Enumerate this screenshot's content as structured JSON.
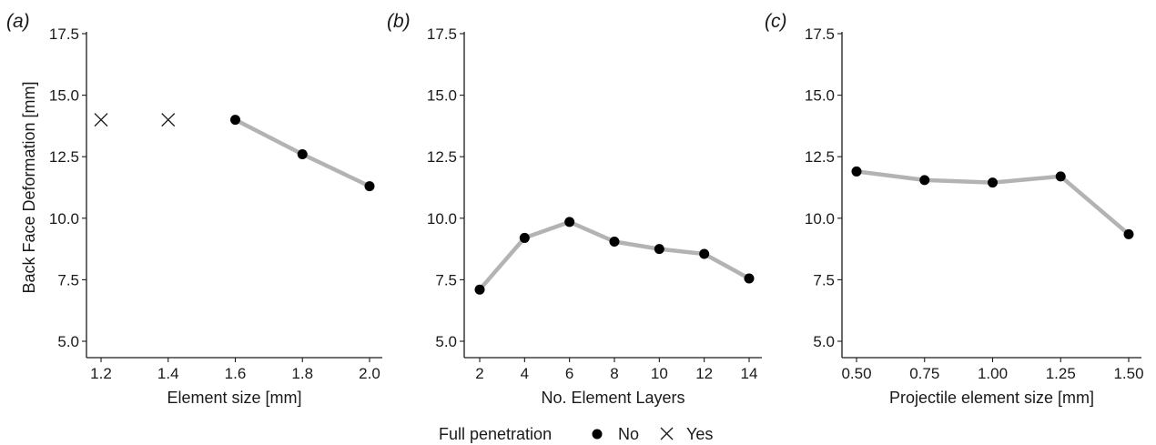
{
  "legend": {
    "title": "Full penetration",
    "entries": [
      {
        "label": "No",
        "marker": "dot"
      },
      {
        "label": "Yes",
        "marker": "cross"
      }
    ]
  },
  "colors": {
    "line": "#b3b3b3",
    "marker": "#000000",
    "axis": "#1a1a1a"
  },
  "chart_data": [
    {
      "type": "line",
      "panel_label": "(a)",
      "xlabel": "Element size [mm]",
      "ylabel": "Back Face Deformation [mm]",
      "xlim": [
        1.2,
        2.0
      ],
      "x_ticks": [
        "1.2",
        "1.4",
        "1.6",
        "1.8",
        "2.0"
      ],
      "ylim": [
        5.0,
        17.5
      ],
      "y_ticks": [
        "5.0",
        "7.5",
        "10.0",
        "12.5",
        "15.0",
        "17.5"
      ],
      "grid": false,
      "points": [
        {
          "x": 1.2,
          "y": 14.0,
          "penetration": "Yes"
        },
        {
          "x": 1.4,
          "y": 14.0,
          "penetration": "Yes"
        },
        {
          "x": 1.6,
          "y": 14.0,
          "penetration": "No"
        },
        {
          "x": 1.8,
          "y": 12.6,
          "penetration": "No"
        },
        {
          "x": 2.0,
          "y": 11.3,
          "penetration": "No"
        }
      ]
    },
    {
      "type": "line",
      "panel_label": "(b)",
      "xlabel": "No. Element Layers",
      "ylabel": "",
      "xlim": [
        2,
        14
      ],
      "x_ticks": [
        "2",
        "4",
        "6",
        "8",
        "10",
        "12",
        "14"
      ],
      "ylim": [
        5.0,
        17.5
      ],
      "y_ticks": [
        "5.0",
        "7.5",
        "10.0",
        "12.5",
        "15.0",
        "17.5"
      ],
      "grid": false,
      "points": [
        {
          "x": 2,
          "y": 7.1,
          "penetration": "No"
        },
        {
          "x": 4,
          "y": 9.2,
          "penetration": "No"
        },
        {
          "x": 6,
          "y": 9.85,
          "penetration": "No"
        },
        {
          "x": 8,
          "y": 9.05,
          "penetration": "No"
        },
        {
          "x": 10,
          "y": 8.75,
          "penetration": "No"
        },
        {
          "x": 12,
          "y": 8.55,
          "penetration": "No"
        },
        {
          "x": 14,
          "y": 7.55,
          "penetration": "No"
        }
      ]
    },
    {
      "type": "line",
      "panel_label": "(c)",
      "xlabel": "Projectile element size [mm]",
      "ylabel": "",
      "xlim": [
        0.5,
        1.5
      ],
      "x_ticks": [
        "0.50",
        "0.75",
        "1.00",
        "1.25",
        "1.50"
      ],
      "ylim": [
        5.0,
        17.5
      ],
      "y_ticks": [
        "5.0",
        "7.5",
        "10.0",
        "12.5",
        "15.0",
        "17.5"
      ],
      "grid": false,
      "points": [
        {
          "x": 0.5,
          "y": 11.9,
          "penetration": "No"
        },
        {
          "x": 0.75,
          "y": 11.55,
          "penetration": "No"
        },
        {
          "x": 1.0,
          "y": 11.45,
          "penetration": "No"
        },
        {
          "x": 1.25,
          "y": 11.7,
          "penetration": "No"
        },
        {
          "x": 1.5,
          "y": 9.35,
          "penetration": "No"
        }
      ]
    }
  ]
}
